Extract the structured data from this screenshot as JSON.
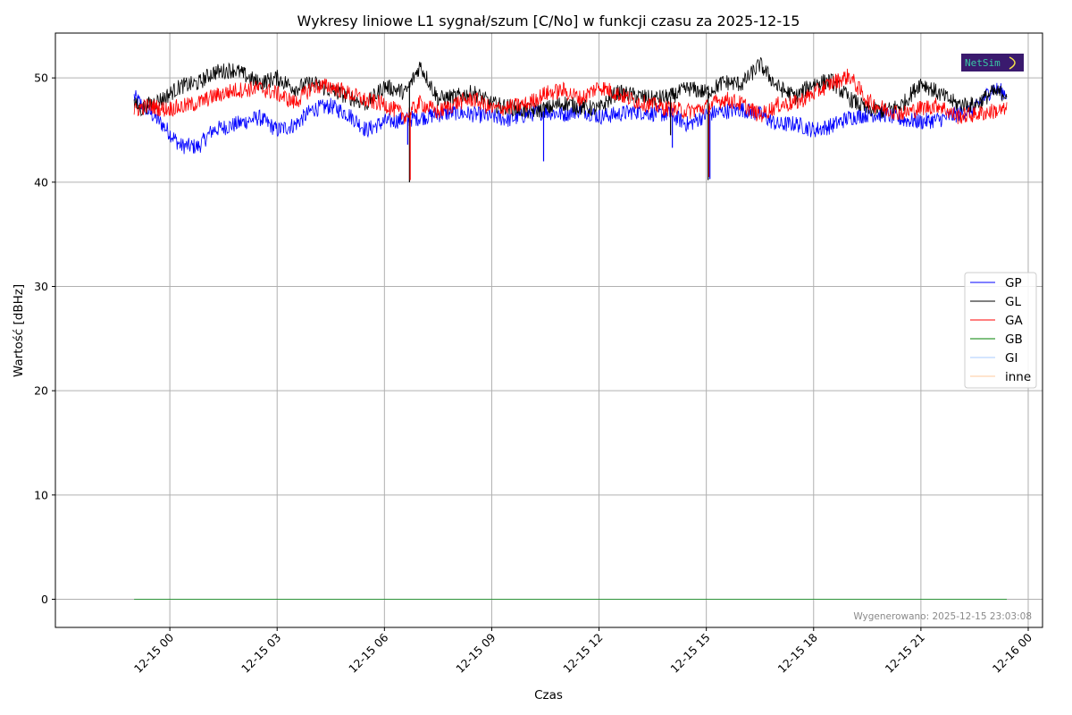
{
  "chart_data": {
    "type": "line",
    "title": "Wykresy liniowe L1 sygnał/szum [C/No] w funkcji czasu za 2025-12-15",
    "xlabel": "Czas",
    "ylabel": "Wartość [dBHz]",
    "x_range_hours": [
      -3.2,
      24.4
    ],
    "ylim": [
      -2.7,
      54.3
    ],
    "x_ticks": [
      {
        "hour": 0,
        "label": "12-15 00"
      },
      {
        "hour": 3,
        "label": "12-15 03"
      },
      {
        "hour": 6,
        "label": "12-15 06"
      },
      {
        "hour": 9,
        "label": "12-15 09"
      },
      {
        "hour": 12,
        "label": "12-15 12"
      },
      {
        "hour": 15,
        "label": "12-15 15"
      },
      {
        "hour": 18,
        "label": "12-15 18"
      },
      {
        "hour": 21,
        "label": "12-15 21"
      },
      {
        "hour": 24,
        "label": "12-16 00"
      }
    ],
    "y_ticks": [
      0,
      10,
      20,
      30,
      40,
      50
    ],
    "grid": true,
    "legend_position": "right",
    "series": [
      {
        "name": "GP",
        "color": "#0000ff",
        "x": [
          -1.0,
          -0.8,
          -0.5,
          -0.2,
          0.3,
          0.8,
          1.2,
          1.8,
          2.5,
          3.0,
          3.5,
          4.0,
          4.5,
          5.0,
          5.5,
          6.0,
          6.6,
          7.0,
          7.5,
          8.0,
          8.5,
          9.0,
          9.5,
          10.0,
          10.5,
          11.0,
          11.5,
          12.0,
          12.5,
          13.0,
          13.5,
          14.0,
          14.5,
          15.0,
          15.5,
          16.0,
          16.5,
          17.0,
          17.5,
          18.0,
          18.5,
          19.0,
          19.5,
          20.0,
          20.5,
          21.0,
          21.5,
          22.0,
          22.5,
          23.0,
          23.4
        ],
        "y": [
          48.2,
          47.5,
          46.5,
          45.5,
          43.5,
          43.4,
          45.0,
          45.5,
          46.2,
          45.0,
          45.5,
          47.0,
          47.3,
          46.5,
          45.0,
          45.8,
          46.0,
          46.2,
          46.5,
          46.7,
          46.5,
          46.3,
          46.0,
          46.5,
          46.8,
          46.5,
          47.0,
          46.3,
          46.5,
          46.8,
          46.6,
          46.5,
          45.5,
          46.5,
          46.8,
          47.0,
          46.5,
          45.5,
          45.6,
          45.0,
          45.4,
          46.2,
          46.5,
          46.5,
          46.0,
          45.8,
          46.0,
          46.5,
          47.0,
          49.0,
          48.5
        ]
      },
      {
        "name": "GL",
        "color": "#000000",
        "x": [
          -1.0,
          -0.8,
          -0.5,
          -0.2,
          0.3,
          0.8,
          1.2,
          1.8,
          2.5,
          3.0,
          3.5,
          4.0,
          4.5,
          5.0,
          5.5,
          6.0,
          6.6,
          7.0,
          7.5,
          8.0,
          8.5,
          9.0,
          9.5,
          10.0,
          10.5,
          11.0,
          11.5,
          12.0,
          12.5,
          13.0,
          13.5,
          14.0,
          14.5,
          15.0,
          15.5,
          16.0,
          16.5,
          17.0,
          17.5,
          18.0,
          18.5,
          19.0,
          19.5,
          20.0,
          20.5,
          21.0,
          21.5,
          22.0,
          22.5,
          23.0,
          23.4
        ],
        "y": [
          47.5,
          47.0,
          47.6,
          48.0,
          49.2,
          49.5,
          50.5,
          50.8,
          49.5,
          50.0,
          49.0,
          49.5,
          48.8,
          48.2,
          47.5,
          49.2,
          48.6,
          51.2,
          48.0,
          48.2,
          48.6,
          47.5,
          47.2,
          46.8,
          47.0,
          47.6,
          47.2,
          47.0,
          48.6,
          48.3,
          48.0,
          48.2,
          49.0,
          48.6,
          49.6,
          49.4,
          51.3,
          49.1,
          48.2,
          49.5,
          49.7,
          48.0,
          47.0,
          46.8,
          47.5,
          49.6,
          48.5,
          47.5,
          47.4,
          48.6,
          48.5
        ]
      },
      {
        "name": "GA",
        "color": "#ff0000",
        "x": [
          -1.0,
          -0.8,
          -0.5,
          -0.2,
          0.3,
          0.8,
          1.2,
          1.8,
          2.5,
          3.0,
          3.5,
          4.0,
          4.5,
          5.0,
          5.5,
          6.0,
          6.6,
          7.0,
          7.5,
          8.0,
          8.5,
          9.0,
          9.5,
          10.0,
          10.5,
          11.0,
          11.5,
          12.0,
          12.5,
          13.0,
          13.5,
          14.0,
          14.5,
          15.0,
          15.5,
          16.0,
          16.5,
          17.0,
          17.5,
          18.0,
          18.5,
          19.0,
          19.5,
          20.0,
          20.5,
          21.0,
          21.5,
          22.0,
          22.5,
          23.0,
          23.4
        ],
        "y": [
          46.8,
          47.2,
          47.3,
          47.0,
          47.2,
          47.6,
          48.2,
          48.8,
          49.0,
          48.5,
          47.6,
          49.2,
          49.2,
          48.5,
          47.8,
          47.5,
          46.3,
          47.6,
          46.7,
          47.6,
          48.0,
          47.0,
          47.2,
          47.5,
          48.5,
          48.8,
          48.0,
          49.2,
          48.5,
          47.8,
          47.4,
          47.0,
          46.8,
          47.2,
          48.0,
          47.5,
          46.4,
          47.4,
          47.6,
          48.5,
          49.5,
          50.2,
          47.8,
          47.0,
          46.6,
          47.1,
          47.4,
          46.3,
          46.5,
          46.8,
          46.9
        ]
      },
      {
        "name": "GB",
        "color": "#008000",
        "x": [
          -1.0,
          23.4
        ],
        "y": [
          0,
          0
        ]
      },
      {
        "name": "GI",
        "color": "#aacbff",
        "x": [
          -1.0,
          23.4
        ],
        "y": [
          0,
          0
        ]
      },
      {
        "name": "inne",
        "color": "#ffc89c",
        "x": [
          -1.0,
          23.4
        ],
        "y": [
          0,
          0
        ]
      }
    ],
    "spikes": [
      {
        "series": "GP",
        "hour": 6.65,
        "value": 43.6
      },
      {
        "series": "GL",
        "hour": 6.7,
        "value": 40.0
      },
      {
        "series": "GA",
        "hour": 6.72,
        "value": 40.2
      },
      {
        "series": "GP",
        "hour": 10.45,
        "value": 42.0
      },
      {
        "series": "GP",
        "hour": 14.05,
        "value": 43.3
      },
      {
        "series": "GL",
        "hour": 14.0,
        "value": 44.5
      },
      {
        "series": "GL",
        "hour": 15.05,
        "value": 40.2
      },
      {
        "series": "GA",
        "hour": 15.08,
        "value": 40.5
      },
      {
        "series": "GP",
        "hour": 15.1,
        "value": 40.3
      }
    ]
  },
  "footnote": "Wygenerowano: 2025-12-15 23:03:08",
  "logo": {
    "text": "NetSim",
    "bg_color": "#3a1a6e",
    "fg_color": "#39c8a4",
    "accent_color": "#f5e24a"
  }
}
